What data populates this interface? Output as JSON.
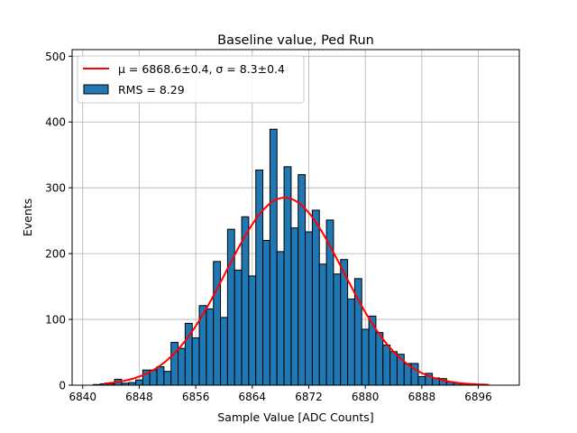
{
  "chart_data": {
    "type": "bar",
    "title": "Baseline value, Ped Run",
    "xlabel": "Sample Value [ADC Counts]",
    "ylabel": "Events",
    "xlim": [
      6838.5,
      6901.8
    ],
    "ylim": [
      0,
      510
    ],
    "xticks": [
      6840,
      6848,
      6856,
      6864,
      6872,
      6880,
      6888,
      6896
    ],
    "yticks": [
      0,
      100,
      200,
      300,
      400,
      500
    ],
    "grid": true,
    "legend_position": "top-left",
    "bin_start": 6841.5,
    "bin_width": 1.0,
    "values": [
      1,
      2,
      2,
      9,
      3,
      4,
      8,
      23,
      23,
      28,
      21,
      65,
      56,
      94,
      72,
      121,
      116,
      188,
      103,
      237,
      175,
      256,
      166,
      327,
      220,
      389,
      203,
      332,
      239,
      320,
      233,
      266,
      184,
      251,
      169,
      191,
      131,
      162,
      85,
      105,
      80,
      61,
      51,
      47,
      33,
      33,
      13,
      18,
      11,
      10,
      5,
      3,
      2,
      1,
      1
    ],
    "bar_color": "#1f77b4",
    "fit": {
      "type": "gaussian",
      "mu": 6868.6,
      "sigma": 8.3,
      "amplitude": 285,
      "range": [
        6843,
        6897.5
      ],
      "color": "#ff0000"
    },
    "legend": [
      {
        "label": "μ = 6868.6±0.4, σ = 8.3±0.4",
        "kind": "line",
        "color": "#ff0000"
      },
      {
        "label": "RMS = 8.29",
        "kind": "patch",
        "color": "#1f77b4"
      }
    ]
  }
}
